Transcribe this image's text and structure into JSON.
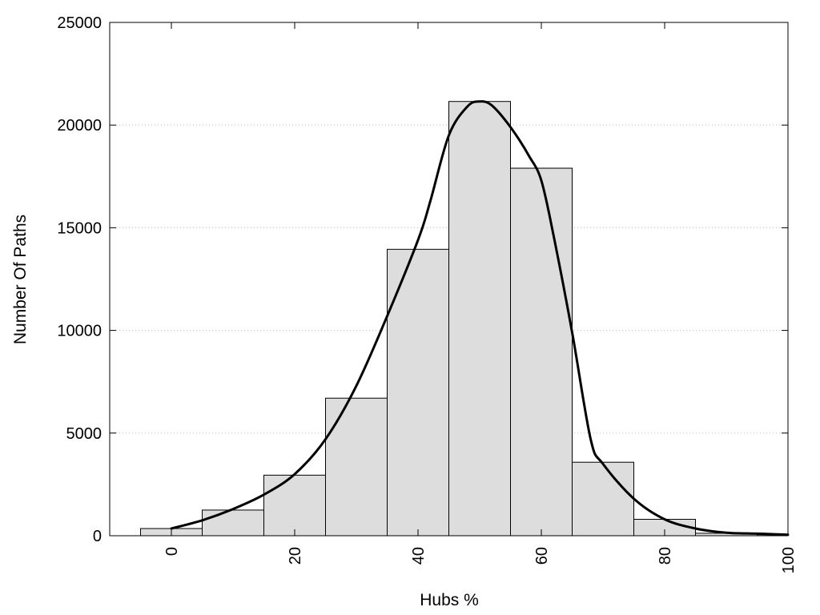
{
  "chart_data": {
    "type": "bar",
    "subtype": "histogram-with-density-curve",
    "title": "",
    "xlabel": "Hubs %",
    "ylabel": "Number Of Paths",
    "xlim": [
      -10,
      100
    ],
    "ylim": [
      0,
      25000
    ],
    "x_ticks": [
      0,
      20,
      40,
      60,
      80,
      100
    ],
    "x_tick_labels": [
      "0",
      "20",
      "40",
      "60",
      "80",
      "100"
    ],
    "y_ticks": [
      0,
      5000,
      10000,
      15000,
      20000,
      25000
    ],
    "y_tick_labels": [
      "0",
      "5000",
      "10000",
      "15000",
      "20000",
      "25000"
    ],
    "grid": "horizontal dotted",
    "bin_width": 10,
    "bins": [
      {
        "center": 0,
        "value": 350
      },
      {
        "center": 10,
        "value": 1250
      },
      {
        "center": 20,
        "value": 2950
      },
      {
        "center": 30,
        "value": 6700
      },
      {
        "center": 40,
        "value": 13950
      },
      {
        "center": 50,
        "value": 21150
      },
      {
        "center": 60,
        "value": 17900
      },
      {
        "center": 70,
        "value": 3580
      },
      {
        "center": 80,
        "value": 800
      },
      {
        "center": 90,
        "value": 120
      },
      {
        "center": 100,
        "value": 50
      }
    ],
    "curve": {
      "name": "",
      "x": [
        0,
        5,
        10,
        15,
        20,
        25,
        30,
        35,
        40,
        42,
        45,
        48,
        50,
        52,
        55,
        58,
        60,
        62,
        65,
        68,
        70,
        75,
        80,
        85,
        90,
        95,
        100
      ],
      "y": [
        350,
        750,
        1300,
        2000,
        3000,
        4700,
        7300,
        10700,
        14400,
        16300,
        19500,
        20900,
        21150,
        20950,
        19900,
        18500,
        17300,
        14600,
        9900,
        4700,
        3500,
        1800,
        800,
        350,
        150,
        100,
        50
      ]
    },
    "colors": {
      "bar_fill": "#dddddd",
      "bar_stroke": "#000000",
      "curve": "#000000",
      "grid": "#bbbbbb"
    }
  }
}
